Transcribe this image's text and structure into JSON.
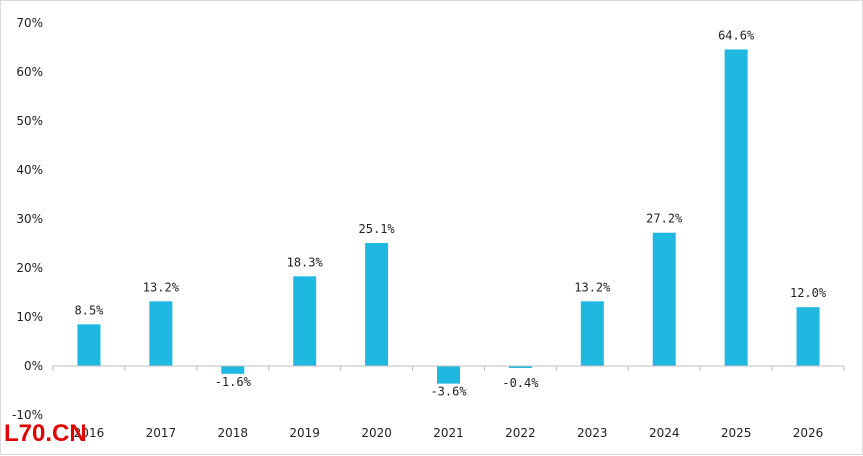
{
  "chart_data": {
    "type": "bar",
    "categories": [
      "2016",
      "2017",
      "2018",
      "2019",
      "2020",
      "2021",
      "2022",
      "2023",
      "2024",
      "2025",
      "2026"
    ],
    "values": [
      8.5,
      13.2,
      -1.6,
      18.3,
      25.1,
      -3.6,
      -0.4,
      13.2,
      27.2,
      64.6,
      12.0
    ],
    "data_labels": [
      "8.5%",
      "13.2%",
      "-1.6%",
      "18.3%",
      "25.1%",
      "-3.6%",
      "-0.4%",
      "13.2%",
      "27.2%",
      "64.6%",
      "12.0%"
    ],
    "ylim": [
      -10,
      70
    ],
    "yticks": [
      -10,
      0,
      10,
      20,
      30,
      40,
      50,
      60,
      70
    ],
    "ytick_labels": [
      "-10%",
      "0%",
      "10%",
      "20%",
      "30%",
      "40%",
      "50%",
      "60%",
      "70%"
    ],
    "title": "",
    "xlabel": "",
    "ylabel": "",
    "grid": false,
    "legend": "none",
    "bar_color": "#1FB8E0",
    "axis_color": "#bfbfbf"
  },
  "watermark": {
    "text": "L70.CN",
    "color": "#e00000"
  }
}
